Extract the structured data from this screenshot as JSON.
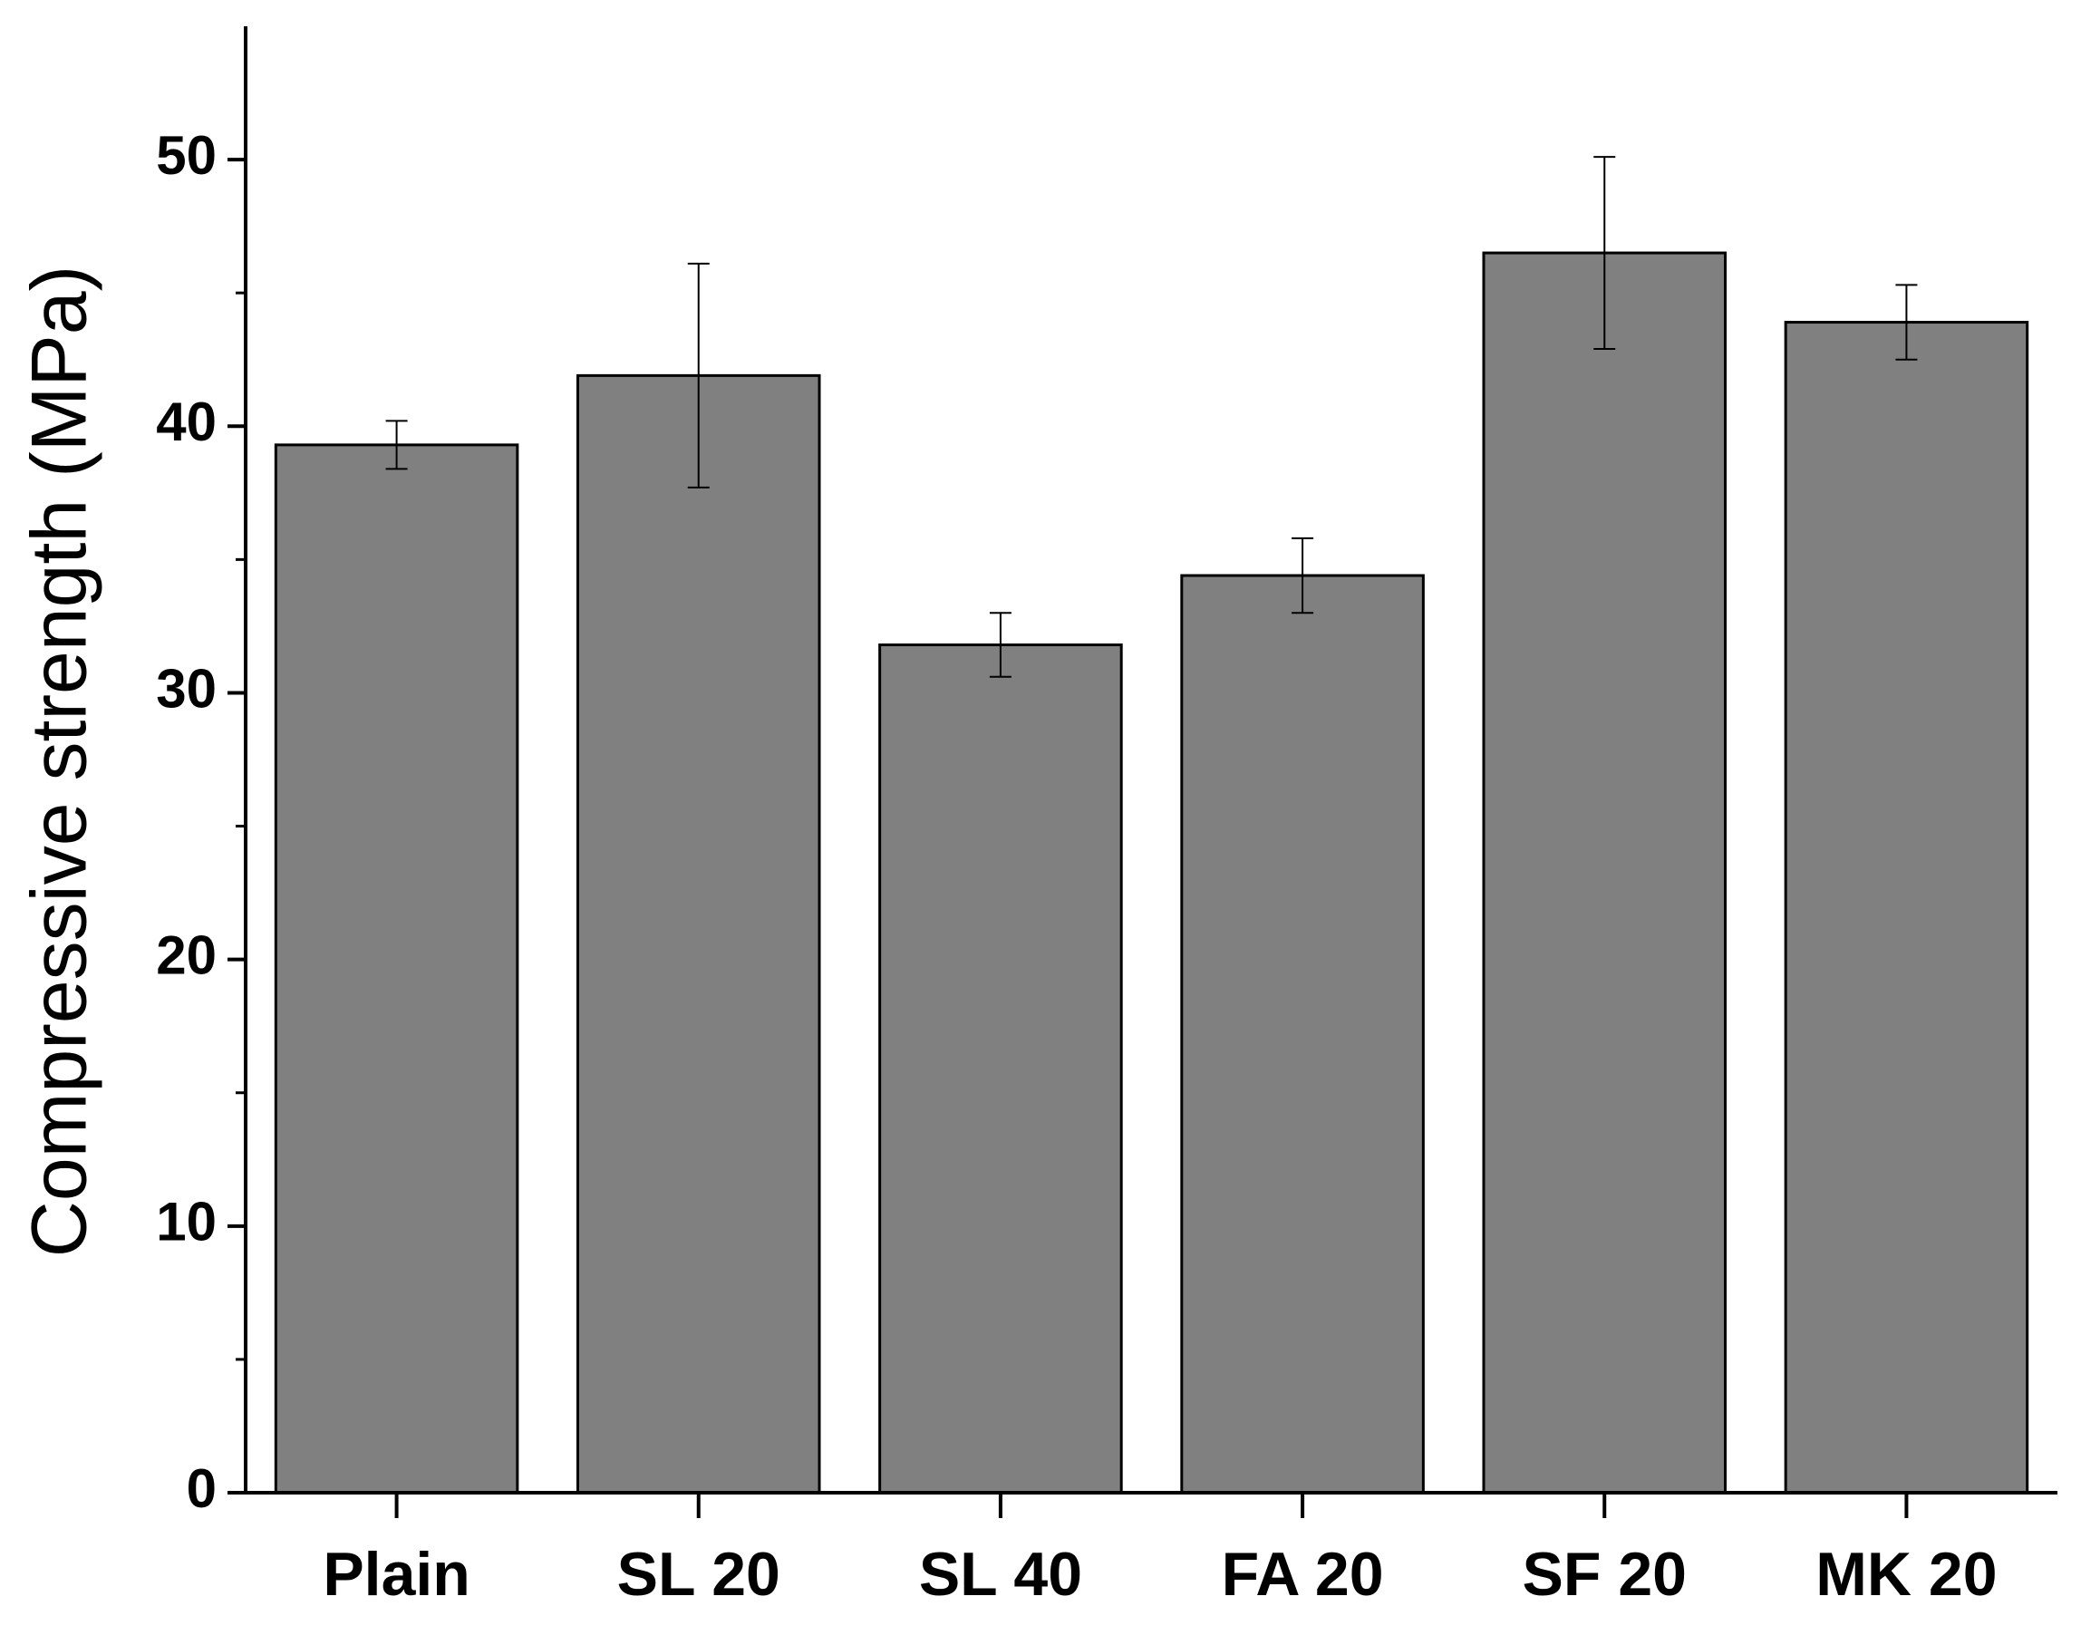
{
  "chart_data": {
    "type": "bar",
    "y_label": "Compressive strength (MPa)",
    "categories": [
      "Plain",
      "SL 20",
      "SL 40",
      "FA 20",
      "SF 20",
      "MK 20"
    ],
    "values": [
      39.3,
      41.9,
      31.8,
      34.4,
      46.5,
      43.9
    ],
    "errors": [
      0.9,
      4.2,
      1.2,
      1.4,
      3.6,
      1.4
    ],
    "color": "#808080",
    "ylim": [
      0,
      55
    ],
    "yticks": [
      0,
      10,
      20,
      30,
      40,
      50
    ],
    "minor_yticks": [
      5,
      15,
      25,
      35,
      45
    ]
  }
}
